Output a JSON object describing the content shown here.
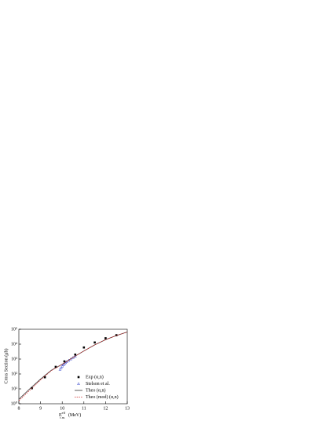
{
  "chart_data": {
    "type": "scatter-line",
    "ylabel": "Cross Section (μb)",
    "xlabel": {
      "base": "E",
      "sup": "eff",
      "sub": "c.m.",
      "unit": "(MeV)"
    },
    "xlim": [
      8,
      13
    ],
    "xticks": [
      8,
      9,
      10,
      11,
      12,
      13
    ],
    "ylim": [
      1,
      100000
    ],
    "log_y": true,
    "yticks": [
      {
        "value": 1,
        "label": "10⁰"
      },
      {
        "value": 10,
        "label": "10¹"
      },
      {
        "value": 100,
        "label": "10²"
      },
      {
        "value": 1000,
        "label": "10³"
      },
      {
        "value": 10000,
        "label": "10⁴"
      },
      {
        "value": 100000,
        "label": "10⁵"
      }
    ],
    "legend": "lower right",
    "series": [
      {
        "name": "Exp (α,n)",
        "style": "square",
        "color": "#000000",
        "x": [
          8.6,
          9.2,
          9.7,
          10.1,
          10.6,
          11.0,
          11.5,
          12.0,
          12.5
        ],
        "values": [
          11,
          60,
          300,
          700,
          2000,
          6000,
          13000,
          25000,
          40000
        ]
      },
      {
        "name": "Stelson et al.",
        "style": "triangle",
        "color": "#3344cc",
        "x": [
          9.9,
          9.95,
          10.0,
          10.05,
          10.1,
          10.15,
          10.2,
          10.3,
          10.4,
          10.5,
          10.6
        ],
        "values": [
          200,
          260,
          330,
          400,
          480,
          560,
          650,
          800,
          1000,
          1250,
          1500
        ]
      },
      {
        "name": "Theo (α,n)",
        "style": "solid",
        "color": "#333333",
        "x": [
          8,
          8.5,
          9,
          9.5,
          10,
          10.5,
          11,
          11.5,
          12,
          12.5,
          13
        ],
        "values": [
          2,
          10,
          45,
          180,
          450,
          1300,
          3500,
          9000,
          20000,
          38000,
          65000
        ]
      },
      {
        "name": "Theo (mod) (α,n)",
        "style": "dash",
        "color": "#cc2222",
        "x": [
          8,
          8.5,
          9,
          9.5,
          10,
          10.5,
          11,
          11.5,
          12,
          12.5,
          13
        ],
        "values": [
          1.6,
          8,
          40,
          170,
          440,
          1300,
          3500,
          9000,
          20000,
          38000,
          65000
        ]
      }
    ]
  }
}
